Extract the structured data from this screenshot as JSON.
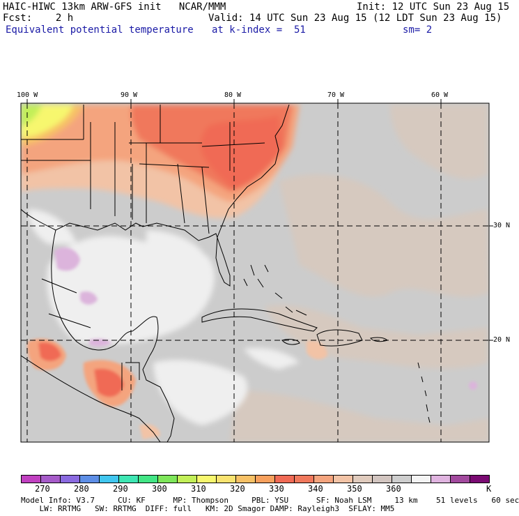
{
  "header": {
    "line1_left": "HAIC-HIWC 13km ARW-GFS init   NCAR/MMM",
    "line1_right": "Init: 12 UTC Sun 23 Aug 15",
    "line2_left": "Fcst:    2 h",
    "line2_right": "Valid: 14 UTC Sun 23 Aug 15 (12 LDT Sun 23 Aug 15)",
    "line3_left": "Equivalent potential temperature",
    "line3_mid": "at k-index =  51",
    "line3_right": "sm= 2"
  },
  "map": {
    "longitude_labels": [
      "100 W",
      "90 W",
      "80 W",
      "70 W",
      "60 W"
    ],
    "latitude_labels": [
      "30 N",
      "20 N"
    ]
  },
  "colorbar": {
    "colors": [
      "#c040c0",
      "#a65bc9",
      "#8a6ae0",
      "#5d8ee6",
      "#41c6ef",
      "#3ee6b3",
      "#42e585",
      "#7ee65a",
      "#c2ef58",
      "#f7f76e",
      "#f9e370",
      "#f7c166",
      "#f7a05d",
      "#f06a55",
      "#f0785c",
      "#f4a47e",
      "#f2c3a6",
      "#e0cbbd",
      "#d2c5c0",
      "#cecece",
      "#f4f4f4",
      "#e0b4e0",
      "#a24a9e",
      "#7a0a72"
    ],
    "tick_labels": [
      "270",
      "280",
      "290",
      "300",
      "310",
      "320",
      "330",
      "340",
      "350",
      "360"
    ],
    "units": "K"
  },
  "footer": {
    "line1": "Model Info: V3.7     CU: KF      MP: Thompson     PBL: YSU      SF: Noah LSM     13 km    51 levels   60 sec",
    "line2": "    LW: RRTMG   SW: RRTMG  DIFF: full   KM: 2D Smagor DAMP: Rayleigh3  SFLAY: MM5"
  }
}
